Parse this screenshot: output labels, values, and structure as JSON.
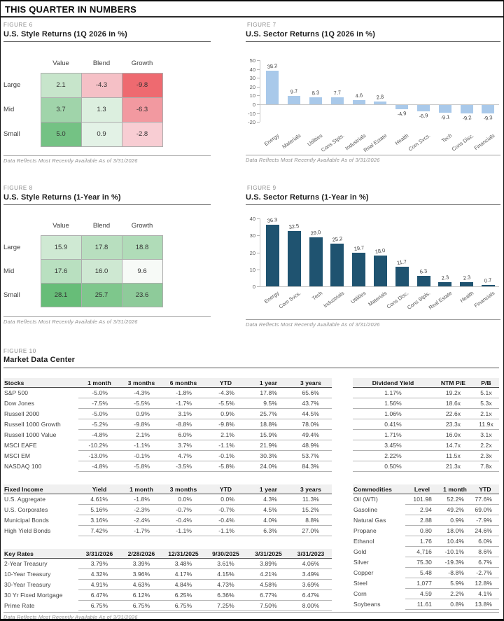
{
  "page": {
    "title": "THIS QUARTER IN NUMBERS"
  },
  "notes": {
    "data_reflects": "Data Reflects Most Recently Available As of 3/31/2026"
  },
  "figures": {
    "fig6": {
      "caption": "FIGURE 6",
      "title": "U.S. Style Returns (1Q 2026 in %)"
    },
    "fig7": {
      "caption": "FIGURE 7",
      "title": "U.S. Sector Returns (1Q 2026 in %)"
    },
    "fig8": {
      "caption": "FIGURE 8",
      "title": "U.S. Style Returns (1-Year in %)"
    },
    "fig9": {
      "caption": "FIGURE 9",
      "title": "U.S. Sector Returns (1-Year in %)"
    },
    "fig10": {
      "caption": "FIGURE 10",
      "title": "Market Data Center"
    }
  },
  "chart_data": [
    {
      "id": "fig6",
      "type": "heatmap",
      "title": "U.S. Style Returns (1Q 2026 in %)",
      "rows": [
        "Large",
        "Mid",
        "Small"
      ],
      "columns": [
        "Value",
        "Blend",
        "Growth"
      ],
      "values": [
        [
          2.1,
          -4.3,
          -9.8
        ],
        [
          3.7,
          1.3,
          -6.3
        ],
        [
          5.0,
          0.9,
          -2.8
        ]
      ],
      "cell_colors": [
        [
          "#c7e5cb",
          "#f5c0c6",
          "#ee6a70"
        ],
        [
          "#a0d4aa",
          "#dcefdf",
          "#f299a0"
        ],
        [
          "#74c284",
          "#e3f2e6",
          "#f8cdd3"
        ]
      ]
    },
    {
      "id": "fig7",
      "type": "bar",
      "title": "U.S. Sector Returns (1Q 2026 in %)",
      "categories": [
        "Energy",
        "Materials",
        "Utilities",
        "Cons Stpls.",
        "Industrials",
        "Real Estate",
        "Health",
        "Com Svcs.",
        "Tech",
        "Cons Disc.",
        "Financials"
      ],
      "values": [
        38.2,
        9.7,
        8.3,
        7.7,
        4.6,
        2.8,
        -4.9,
        -6.9,
        -9.1,
        -9.2,
        -9.3
      ],
      "ylim": [
        -20,
        50
      ],
      "yticks": [
        50,
        40,
        30,
        20,
        10,
        0,
        -10,
        -20
      ],
      "bar_color": "#a9c9ea",
      "grid": false,
      "legend": "none"
    },
    {
      "id": "fig8",
      "type": "heatmap",
      "title": "U.S. Style Returns (1-Year in %)",
      "rows": [
        "Large",
        "Mid",
        "Small"
      ],
      "columns": [
        "Value",
        "Blend",
        "Growth"
      ],
      "values": [
        [
          15.9,
          17.8,
          18.8
        ],
        [
          17.6,
          16.0,
          9.6
        ],
        [
          28.1,
          25.7,
          23.6
        ]
      ],
      "cell_colors": [
        [
          "#cfe9d3",
          "#b8dfbf",
          "#b0dcb8"
        ],
        [
          "#b9e0c0",
          "#cee8d2",
          "#f7faf7"
        ],
        [
          "#67bd78",
          "#7ec78c",
          "#8ecb9a"
        ]
      ]
    },
    {
      "id": "fig9",
      "type": "bar",
      "title": "U.S. Sector Returns (1-Year in %)",
      "categories": [
        "Energy",
        "Com Svcs.",
        "Tech",
        "Industrials",
        "Utilities",
        "Materials",
        "Cons Disc.",
        "Cons Stpls.",
        "Real Estate",
        "Health",
        "Financials"
      ],
      "values": [
        36.3,
        32.5,
        29.0,
        25.2,
        19.7,
        18.0,
        11.7,
        6.3,
        2.3,
        2.3,
        0.7
      ],
      "ylim": [
        0,
        40
      ],
      "yticks": [
        40,
        30,
        20,
        10,
        0
      ],
      "bar_color": "#1f5370",
      "grid": false,
      "legend": "none"
    }
  ],
  "market_data": {
    "stocks": {
      "headers": [
        "Stocks",
        "1 month",
        "3 months",
        "6 months",
        "YTD",
        "1 year",
        "3 years"
      ],
      "rows": [
        [
          "S&P 500",
          "-5.0%",
          "-4.3%",
          "-1.8%",
          "-4.3%",
          "17.8%",
          "65.6%"
        ],
        [
          "Dow Jones",
          "-7.5%",
          "-5.5%",
          "-1.7%",
          "-5.5%",
          "9.5%",
          "43.7%"
        ],
        [
          "Russell 2000",
          "-5.0%",
          "0.9%",
          "3.1%",
          "0.9%",
          "25.7%",
          "44.5%"
        ],
        [
          "Russell 1000 Growth",
          "-5.2%",
          "-9.8%",
          "-8.8%",
          "-9.8%",
          "18.8%",
          "78.0%"
        ],
        [
          "Russell 1000 Value",
          "-4.8%",
          "2.1%",
          "6.0%",
          "2.1%",
          "15.9%",
          "49.4%"
        ],
        [
          "MSCI EAFE",
          "-10.2%",
          "-1.1%",
          "3.7%",
          "-1.1%",
          "21.9%",
          "48.9%"
        ],
        [
          "MSCI EM",
          "-13.0%",
          "-0.1%",
          "4.7%",
          "-0.1%",
          "30.3%",
          "53.7%"
        ],
        [
          "NASDAQ 100",
          "-4.8%",
          "-5.8%",
          "-3.5%",
          "-5.8%",
          "24.0%",
          "84.3%"
        ]
      ]
    },
    "valuation": {
      "headers": [
        "Dividend Yield",
        "NTM P/E",
        "P/B"
      ],
      "rows": [
        [
          "1.17%",
          "19.2x",
          "5.1x"
        ],
        [
          "1.56%",
          "18.6x",
          "5.3x"
        ],
        [
          "1.06%",
          "22.6x",
          "2.1x"
        ],
        [
          "0.41%",
          "23.3x",
          "11.9x"
        ],
        [
          "1.71%",
          "16.0x",
          "3.1x"
        ],
        [
          "3.45%",
          "14.7x",
          "2.2x"
        ],
        [
          "2.22%",
          "11.5x",
          "2.3x"
        ],
        [
          "0.50%",
          "21.3x",
          "7.8x"
        ]
      ]
    },
    "fixed_income": {
      "headers": [
        "Fixed Income",
        "Yield",
        "1 month",
        "3 months",
        "YTD",
        "1 year",
        "3 years"
      ],
      "rows": [
        [
          "U.S. Aggregate",
          "4.61%",
          "-1.8%",
          "0.0%",
          "0.0%",
          "4.3%",
          "11.3%"
        ],
        [
          "U.S. Corporates",
          "5.16%",
          "-2.3%",
          "-0.7%",
          "-0.7%",
          "4.5%",
          "15.2%"
        ],
        [
          "Municipal Bonds",
          "3.16%",
          "-2.4%",
          "-0.4%",
          "-0.4%",
          "4.0%",
          "8.8%"
        ],
        [
          "High Yield Bonds",
          "7.42%",
          "-1.7%",
          "-1.1%",
          "-1.1%",
          "6.3%",
          "27.0%"
        ]
      ]
    },
    "key_rates": {
      "headers": [
        "Key Rates",
        "3/31/2026",
        "2/28/2026",
        "12/31/2025",
        "9/30/2025",
        "3/31/2025",
        "3/31/2023"
      ],
      "rows": [
        [
          "2-Year Treasury",
          "3.79%",
          "3.39%",
          "3.48%",
          "3.61%",
          "3.89%",
          "4.06%"
        ],
        [
          "10-Year Treasury",
          "4.32%",
          "3.96%",
          "4.17%",
          "4.15%",
          "4.21%",
          "3.49%"
        ],
        [
          "30-Year Treasury",
          "4.91%",
          "4.63%",
          "4.84%",
          "4.73%",
          "4.58%",
          "3.69%"
        ],
        [
          "30 Yr Fixed Mortgage",
          "6.47%",
          "6.12%",
          "6.25%",
          "6.36%",
          "6.77%",
          "6.47%"
        ],
        [
          "Prime Rate",
          "6.75%",
          "6.75%",
          "6.75%",
          "7.25%",
          "7.50%",
          "8.00%"
        ]
      ]
    },
    "commodities": {
      "headers": [
        "Commodities",
        "Level",
        "1 month",
        "YTD"
      ],
      "rows": [
        [
          "Oil (WTI)",
          "101.98",
          "52.2%",
          "77.6%"
        ],
        [
          "Gasoline",
          "2.94",
          "49.2%",
          "69.0%"
        ],
        [
          "Natural Gas",
          "2.88",
          "0.9%",
          "-7.9%"
        ],
        [
          "Propane",
          "0.80",
          "18.0%",
          "24.6%"
        ],
        [
          "Ethanol",
          "1.76",
          "10.4%",
          "6.0%"
        ],
        [
          "Gold",
          "4,716",
          "-10.1%",
          "8.6%"
        ],
        [
          "Silver",
          "75.30",
          "-19.3%",
          "6.7%"
        ],
        [
          "Copper",
          "5.48",
          "-8.8%",
          "-2.7%"
        ],
        [
          "Steel",
          "1,077",
          "5.9%",
          "12.8%"
        ],
        [
          "Corn",
          "4.59",
          "2.2%",
          "4.1%"
        ],
        [
          "Soybeans",
          "11.61",
          "0.8%",
          "13.8%"
        ]
      ]
    }
  },
  "colors": {
    "quarter_bar": "#a9c9ea",
    "year_bar": "#1f5370",
    "positive_green": "#67bd78",
    "negative_red": "#ee6a70",
    "header_band": "#f0f0f0"
  }
}
